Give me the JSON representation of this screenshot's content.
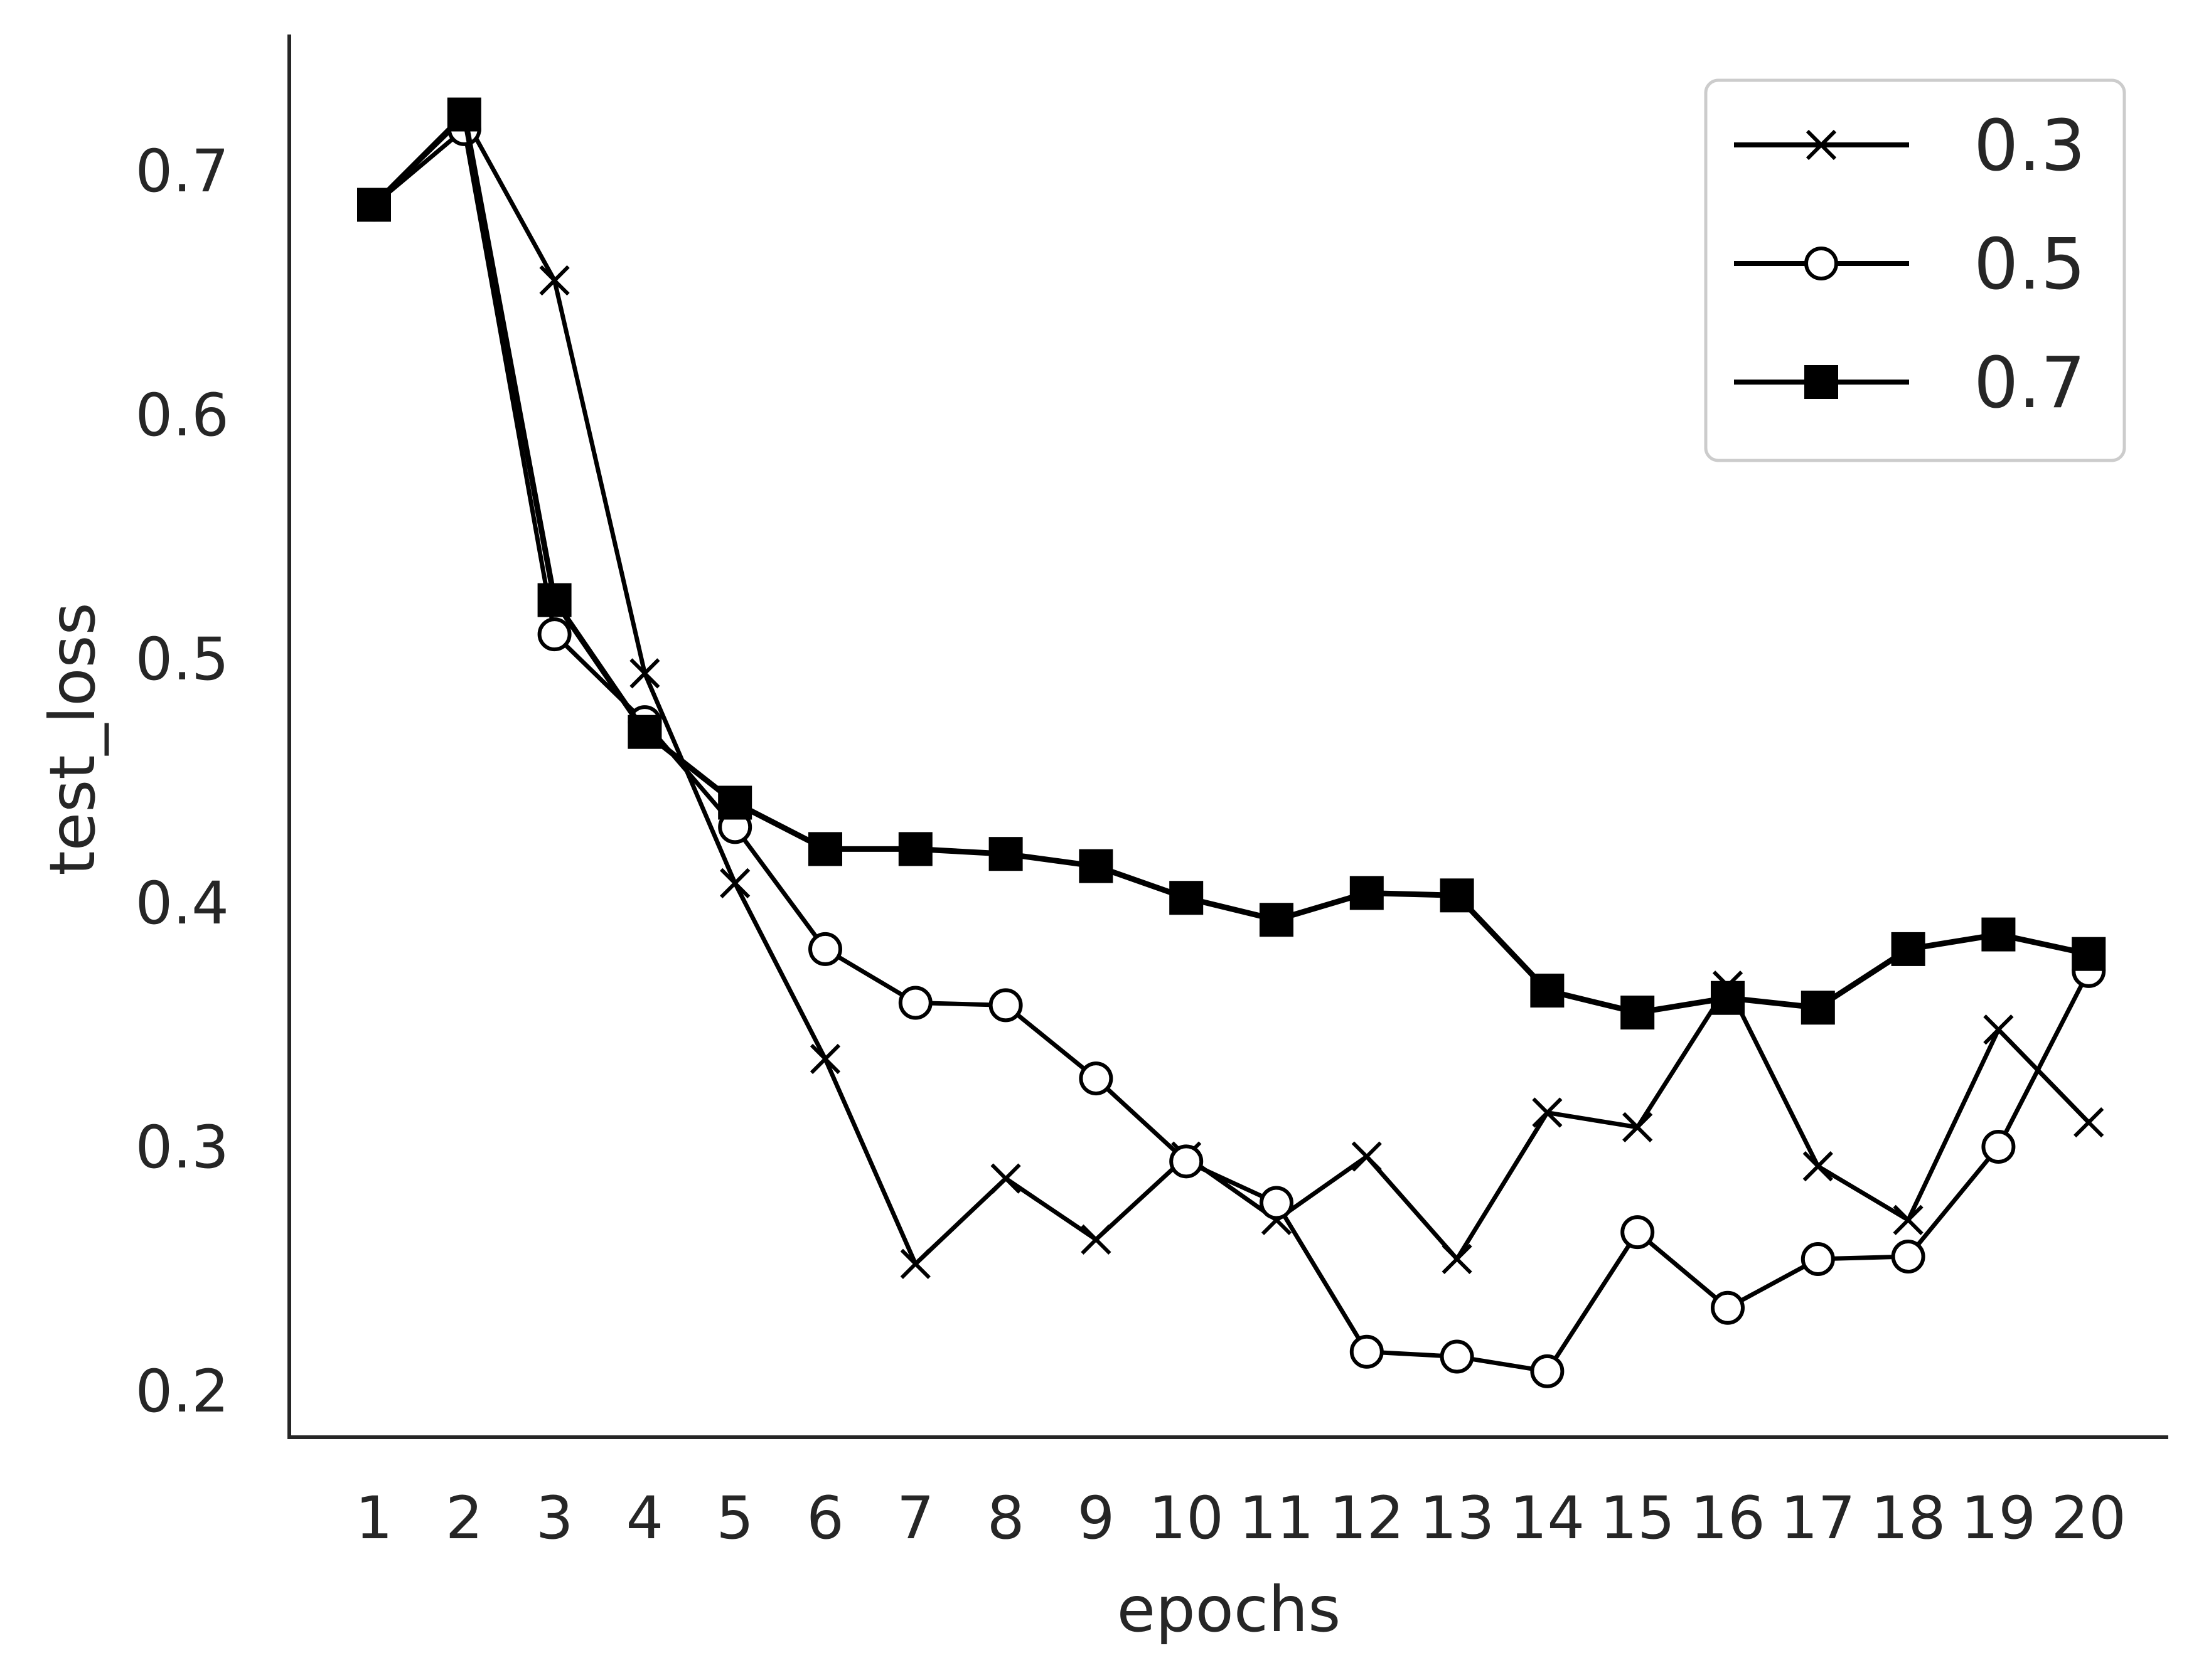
{
  "chart_data": {
    "type": "line",
    "title": "",
    "xlabel": "epochs",
    "ylabel": "test_loss",
    "x": [
      1,
      2,
      3,
      4,
      5,
      6,
      7,
      8,
      9,
      10,
      11,
      12,
      13,
      14,
      15,
      16,
      17,
      18,
      19,
      20
    ],
    "x_tick_labels": [
      "1",
      "2",
      "3",
      "4",
      "5",
      "6",
      "7",
      "8",
      "9",
      "10",
      "11",
      "12",
      "13",
      "14",
      "15",
      "16",
      "17",
      "18",
      "19",
      "20"
    ],
    "y_ticks": [
      0.2,
      0.3,
      0.4,
      0.5,
      0.6,
      0.7
    ],
    "y_tick_labels": [
      "0.2",
      "0.3",
      "0.4",
      "0.5",
      "0.6",
      "0.7"
    ],
    "ylim": [
      0.18,
      0.75
    ],
    "grid": false,
    "legend_position": "top-right",
    "colors": {
      "line": "#000000",
      "axis": "#262626",
      "legend_border": "#cccccc"
    },
    "series": [
      {
        "name": "0.3",
        "marker": "x",
        "values": [
          0.686,
          0.722,
          0.655,
          0.494,
          0.408,
          0.336,
          0.252,
          0.287,
          0.262,
          0.296,
          0.27,
          0.296,
          0.254,
          0.314,
          0.308,
          0.366,
          0.292,
          0.27,
          0.348,
          0.31
        ]
      },
      {
        "name": "0.5",
        "marker": "open-circle",
        "values": [
          0.686,
          0.717,
          0.51,
          0.474,
          0.431,
          0.381,
          0.359,
          0.358,
          0.328,
          0.294,
          0.277,
          0.216,
          0.214,
          0.208,
          0.265,
          0.234,
          0.254,
          0.255,
          0.3,
          0.372
        ]
      },
      {
        "name": "0.7",
        "marker": "filled-square",
        "values": [
          0.686,
          0.723,
          0.524,
          0.47,
          0.441,
          0.422,
          0.422,
          0.42,
          0.415,
          0.402,
          0.393,
          0.404,
          0.403,
          0.364,
          0.355,
          0.361,
          0.357,
          0.381,
          0.387,
          0.379
        ]
      }
    ]
  }
}
